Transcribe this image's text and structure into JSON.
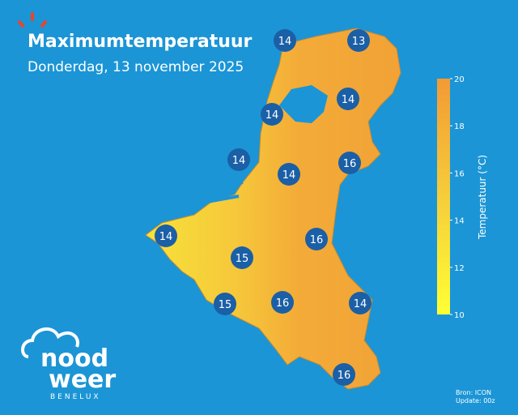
{
  "header": {
    "title": "Maximumtemperatuur",
    "subtitle": "Donderdag, 13 november 2025"
  },
  "stations": [
    14,
    13,
    14,
    14,
    14,
    14,
    16,
    14,
    16,
    15,
    15,
    16,
    14,
    16
  ],
  "colorbar": {
    "label": "Temperatuur (°C)",
    "lim": [
      10,
      20
    ],
    "ticks": [
      10,
      12,
      14,
      16,
      18,
      20
    ]
  },
  "source": "Bron: ICON",
  "update": "Update: 00z",
  "logo": {
    "line1": "nood",
    "line2": "weer",
    "line3": "BENELUX"
  }
}
